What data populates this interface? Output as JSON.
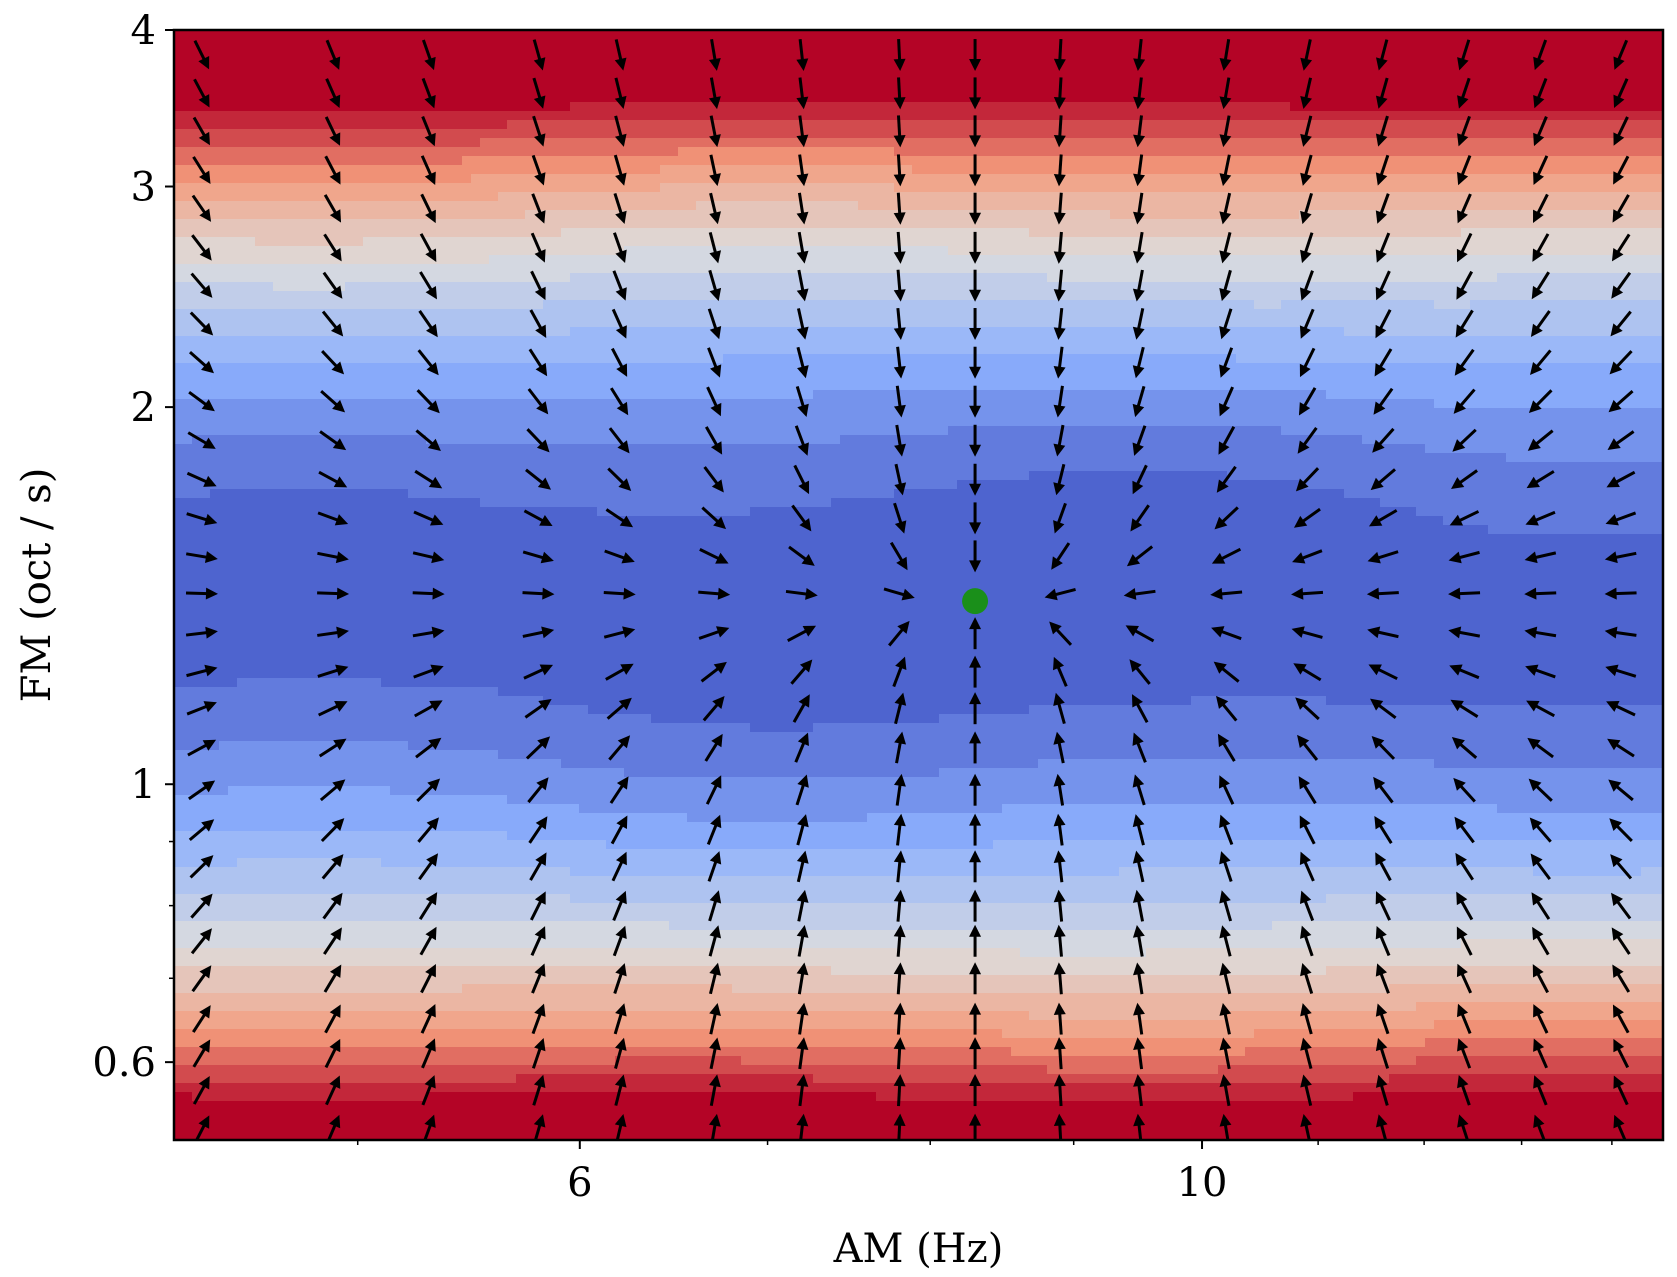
{
  "chart_data": {
    "type": "heatmap",
    "subtype": "filled-contour with quiver (gradient arrows)",
    "title": "",
    "xlabel": "AM (Hz)",
    "ylabel": "FM (oct / s)",
    "x_scale": "log",
    "y_scale": "log",
    "xlim": [
      4.3,
      14.6
    ],
    "ylim": [
      0.52,
      4.0
    ],
    "x_ticks": [
      {
        "value": 6,
        "label": "6"
      },
      {
        "value": 10,
        "label": "10"
      }
    ],
    "x_minor_ticks": [
      5,
      7,
      8,
      9,
      11,
      12,
      13,
      14
    ],
    "y_ticks": [
      {
        "value": 0.6,
        "label": "0.6"
      },
      {
        "value": 1,
        "label": "1"
      },
      {
        "value": 2,
        "label": "2"
      },
      {
        "value": 3,
        "label": "3"
      },
      {
        "value": 4,
        "label": "4"
      }
    ],
    "y_minor_ticks": [
      0.7,
      0.8,
      0.9
    ],
    "colormap": "coolwarm",
    "colors": {
      "low": "#3b4cc0",
      "mid": "#dddddd",
      "high": "#b40426"
    },
    "field": {
      "shape": "minimum basin",
      "minimum": {
        "am": 8.3,
        "fm": 1.4
      },
      "description_levels": 18
    },
    "arrows": {
      "direction": "toward minimum",
      "grid_am": [
        4.4,
        4.9,
        5.3,
        5.8,
        6.2,
        6.7,
        7.2,
        7.8,
        8.3,
        8.9,
        9.5,
        10.2,
        10.9,
        11.6,
        12.4,
        13.2,
        14.1
      ],
      "grid_fm": [
        0.53,
        0.57,
        0.61,
        0.65,
        0.7,
        0.75,
        0.8,
        0.86,
        0.92,
        0.99,
        1.07,
        1.15,
        1.23,
        1.32,
        1.42,
        1.52,
        1.63,
        1.75,
        1.88,
        2.02,
        2.17,
        2.33,
        2.5,
        2.68,
        2.88,
        3.09,
        3.32,
        3.56,
        3.82
      ]
    },
    "marker": {
      "am": 8.3,
      "fm": 1.4,
      "color": "#1a8f1a",
      "label": ""
    },
    "grid": false,
    "legend": "none"
  }
}
